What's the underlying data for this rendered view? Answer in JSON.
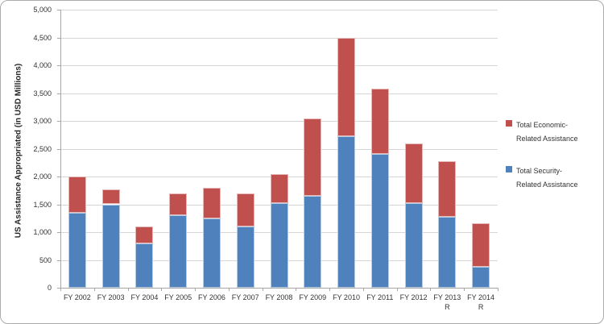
{
  "chart_data": {
    "type": "bar",
    "stacked": true,
    "title": "",
    "xlabel": "",
    "ylabel": "US Assistance Appropriated (in USD Millions)",
    "ylim": [
      0,
      5000
    ],
    "ytick_step": 500,
    "ytick_labels": [
      "0",
      "500",
      "1,000",
      "1,500",
      "2,000",
      "2,500",
      "3,000",
      "3,500",
      "4,000",
      "4,500",
      "5,000"
    ],
    "grid": true,
    "legend_position": "right",
    "categories": [
      {
        "label": "FY 2002",
        "sublabel": ""
      },
      {
        "label": "FY 2003",
        "sublabel": ""
      },
      {
        "label": "FY 2004",
        "sublabel": ""
      },
      {
        "label": "FY 2005",
        "sublabel": ""
      },
      {
        "label": "FY 2006",
        "sublabel": ""
      },
      {
        "label": "FY 2007",
        "sublabel": ""
      },
      {
        "label": "FY 2008",
        "sublabel": ""
      },
      {
        "label": "FY 2009",
        "sublabel": ""
      },
      {
        "label": "FY 2010",
        "sublabel": ""
      },
      {
        "label": "FY 2011",
        "sublabel": ""
      },
      {
        "label": "FY 2012",
        "sublabel": ""
      },
      {
        "label": "FY 2013",
        "sublabel": "R"
      },
      {
        "label": "FY 2014",
        "sublabel": "R"
      }
    ],
    "series": [
      {
        "name": "Total Security-Related Assistance",
        "color": "#4f81bd",
        "edge_color": "#b8cce4",
        "values": [
          1350,
          1500,
          800,
          1300,
          1250,
          1100,
          1525,
          1650,
          2725,
          2400,
          1525,
          1275,
          375
        ]
      },
      {
        "name": "Total Economic-Related Assistance",
        "color": "#c0504d",
        "edge_color": "#e5b8b7",
        "values": [
          650,
          275,
          300,
          400,
          550,
          600,
          525,
          1400,
          1775,
          1175,
          1075,
          1000,
          790
        ]
      }
    ],
    "legend": [
      {
        "series": "Total Economic-Related Assistance",
        "color": "#c0504d",
        "lines": [
          "Total Economic-",
          "Related Assistance"
        ]
      },
      {
        "series": "Total Security-Related Assistance",
        "color": "#4f81bd",
        "lines": [
          "Total Security-",
          "Related Assistance"
        ]
      }
    ]
  },
  "colors": {
    "gridline": "#d6d6d6",
    "axis": "#a6a6a6",
    "text": "#333333",
    "background": "#ffffff",
    "frame_border": "#ababab"
  }
}
